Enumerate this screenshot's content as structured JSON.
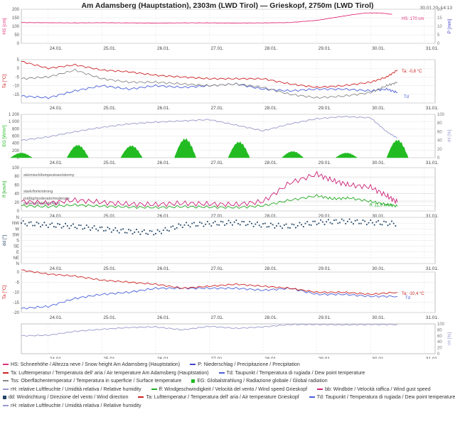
{
  "header": {
    "title": "Am Adamsberg (Hauptstation), 2303m (LWD Tirol) — Grieskopf, 2750m (LWD Tirol)",
    "timestamp": "30.01.20, 14:13"
  },
  "colors": {
    "hs": "#e0307a",
    "precip": "#4444cc",
    "ta": "#cc2222",
    "td": "#4a5fd8",
    "tss": "#888888",
    "eg": "#22bb22",
    "rh": "#9999cc",
    "ff": "#22aa22",
    "bb": "#cc2277",
    "dd": "#224466"
  },
  "chart_data": [
    {
      "type": "line",
      "id": "hs",
      "ylabel": "HS [cm]",
      "ylabel_right": "P [mm]",
      "ylim": [
        0,
        200
      ],
      "yticks": [
        "0",
        "50",
        "100",
        "150",
        "200"
      ],
      "yticks_right": [
        "0",
        "5",
        "10",
        "15",
        "20"
      ],
      "x": [
        23.5,
        24,
        24.5,
        25,
        25.5,
        26,
        26.5,
        27,
        27.5,
        28,
        28.5,
        29,
        29.3,
        29.6,
        29.9,
        30.2,
        30.4
      ],
      "xlim": [
        23.5,
        31.2
      ],
      "xticks": [
        "24.01.",
        "25.01.",
        "26.01.",
        "27.01.",
        "28.01.",
        "29.01.",
        "30.01.",
        "31.01."
      ],
      "series": [
        {
          "key": "hs",
          "values": [
            122,
            121,
            120,
            121,
            120,
            119,
            120,
            120,
            119,
            120,
            122,
            135,
            150,
            165,
            178,
            178,
            170
          ]
        }
      ],
      "annotation": "HS: 170 cm"
    },
    {
      "type": "line",
      "id": "temp1",
      "ylabel": "Ta [°C]",
      "ylim": [
        -20,
        5
      ],
      "yticks": [
        "-15",
        "-10",
        "-5",
        "0",
        "5"
      ],
      "x": [
        23.5,
        24,
        24.5,
        25,
        25.5,
        26,
        26.5,
        27,
        27.5,
        28,
        28.5,
        29,
        29.5,
        30,
        30.3,
        30.5
      ],
      "xlim": [
        23.5,
        31.2
      ],
      "xticks": [
        "24.01.",
        "25.01.",
        "26.01.",
        "27.01.",
        "28.01.",
        "29.01.",
        "30.01.",
        "31.01."
      ],
      "series": [
        {
          "key": "ta",
          "values": [
            4,
            0,
            2,
            -1,
            -2,
            -4,
            -5,
            -6,
            -6,
            -6,
            -9,
            -11,
            -10,
            -8,
            -5,
            -1
          ]
        },
        {
          "key": "tss",
          "values": [
            -6,
            -5,
            -1,
            -6,
            -8,
            -8,
            -9,
            -10,
            -9,
            -11,
            -15,
            -17,
            -16,
            -14,
            -10,
            -8
          ]
        },
        {
          "key": "td",
          "values": [
            -16,
            -17,
            -13,
            -10,
            -12,
            -10,
            -11,
            -10,
            -9,
            -12,
            -13,
            -12,
            -12,
            -13,
            -12,
            -14
          ]
        }
      ],
      "annotations": [
        "Ta: -0,8 °C",
        "Td"
      ]
    },
    {
      "type": "area",
      "id": "rad",
      "ylabel": "EG [W/m²]",
      "ylabel_right": "rH [%]",
      "ylim": [
        0,
        1200
      ],
      "yticks": [
        "0",
        "200",
        "400",
        "600",
        "800",
        "1 000",
        "1 200"
      ],
      "yticks_right": [
        "0",
        "20",
        "40",
        "60",
        "80",
        "100"
      ],
      "x": [
        23.5,
        24,
        24.5,
        25,
        25.5,
        26,
        26.5,
        27,
        27.5,
        28,
        28.5,
        29,
        29.5,
        30,
        30.3,
        30.5
      ],
      "xlim": [
        23.5,
        31.2
      ],
      "xticks": [
        "24.01.",
        "25.01.",
        "26.01.",
        "27.01.",
        "28.01.",
        "29.01.",
        "30.01.",
        "31.01."
      ],
      "rh_values": [
        40,
        48,
        60,
        70,
        78,
        82,
        85,
        88,
        75,
        62,
        78,
        90,
        95,
        92,
        60,
        45
      ],
      "rad_days": [
        23.5,
        24.55,
        25.55,
        26.55,
        27.55,
        28.55,
        29.55,
        30.5
      ],
      "rad_peaks": [
        150,
        400,
        380,
        600,
        500,
        200,
        150,
        560
      ]
    },
    {
      "type": "line",
      "id": "wind",
      "ylabel": "ff [km/h]",
      "ylim": [
        0,
        100
      ],
      "yticks": [
        "0",
        "20",
        "40",
        "60",
        "80",
        "100"
      ],
      "bands": [
        "stürmisch/tempestoso/stormy",
        "stark/forte/strong",
        "mäßig/moderato/moderate",
        "schwach/debole/light"
      ],
      "x": [
        23.5,
        24,
        24.5,
        25,
        25.5,
        26,
        26.5,
        27,
        27.5,
        28,
        28.5,
        29,
        29.3,
        29.6,
        30,
        30.3,
        30.5
      ],
      "xlim": [
        23.5,
        31.2
      ],
      "xticks": [
        "24.01.",
        "25.01.",
        "26.01.",
        "27.01.",
        "28.01.",
        "29.01.",
        "30.01.",
        "31.01."
      ],
      "series": [
        {
          "key": "ff",
          "values": [
            12,
            10,
            14,
            11,
            9,
            8,
            10,
            9,
            8,
            12,
            25,
            35,
            28,
            30,
            22,
            15,
            11
          ]
        },
        {
          "key": "bb",
          "values": [
            22,
            18,
            25,
            20,
            16,
            15,
            18,
            16,
            15,
            22,
            65,
            85,
            70,
            60,
            55,
            35,
            20
          ]
        }
      ],
      "annotation": "ff: 11,6 km/h"
    },
    {
      "type": "scatter",
      "id": "dir",
      "ylabel": "dd [°]",
      "yticks": [
        "N",
        "NW",
        "W",
        "SW",
        "S",
        "SE",
        "E",
        "NE",
        "N"
      ],
      "x": [
        23.5,
        24,
        24.5,
        25,
        25.5,
        26,
        26.5,
        27,
        27.5,
        28,
        28.5,
        29,
        29.5,
        30,
        30.5
      ],
      "xlim": [
        23.5,
        31.2
      ],
      "xticks": [
        "24.01.",
        "25.01.",
        "26.01.",
        "27.01.",
        "28.01.",
        "29.01.",
        "30.01.",
        "31.01."
      ],
      "values": [
        315,
        300,
        290,
        270,
        250,
        240,
        300,
        310,
        320,
        300,
        290,
        320,
        330,
        320,
        310
      ]
    },
    {
      "type": "line",
      "id": "temp2",
      "ylabel": "Ta [°C]",
      "ylim": [
        -20,
        0
      ],
      "yticks": [
        "-20",
        "-15",
        "-10",
        "-5",
        "0"
      ],
      "x": [
        23.5,
        24,
        24.5,
        25,
        25.5,
        26,
        26.5,
        27,
        27.5,
        28,
        28.5,
        29,
        29.5,
        30,
        30.5
      ],
      "xlim": [
        23.5,
        31.2
      ],
      "xticks": [
        "24.01.",
        "25.01.",
        "26.01.",
        "27.01.",
        "28.01.",
        "29.01.",
        "30.01.",
        "31.01."
      ],
      "series": [
        {
          "key": "ta",
          "values": [
            1,
            -1,
            -2,
            -4,
            -5,
            -6,
            -8,
            -7,
            -6,
            -7,
            -8,
            -10,
            -10,
            -11,
            -10
          ]
        },
        {
          "key": "td",
          "values": [
            -18,
            -17,
            -13,
            -11,
            -10,
            -8,
            -8,
            -8,
            -8,
            -9,
            -8,
            -11,
            -11,
            -12,
            -12
          ]
        }
      ],
      "annotations": [
        "Ta: -10,4 °C",
        "Td"
      ]
    },
    {
      "type": "line",
      "id": "rh2",
      "ylabel_right": "rH [%]",
      "ylim": [
        0,
        100
      ],
      "yticks_right": [
        "0",
        "20",
        "40",
        "60",
        "80",
        "100"
      ],
      "x": [
        23.5,
        24,
        24.5,
        25,
        25.5,
        26,
        26.5,
        27,
        27.5,
        28,
        28.5,
        29,
        29.5,
        30,
        30.5
      ],
      "xlim": [
        23.5,
        31.2
      ],
      "xticks": [
        "24.01.",
        "25.01.",
        "26.01.",
        "27.01.",
        "28.01.",
        "29.01.",
        "30.01.",
        "31.01."
      ],
      "series": [
        {
          "key": "rh",
          "values": [
            60,
            62,
            75,
            82,
            88,
            90,
            80,
            92,
            85,
            90,
            98,
            98,
            97,
            98,
            98
          ]
        }
      ]
    }
  ],
  "legend": [
    [
      {
        "key": "hs",
        "label": "HS: Schneehöhe / Altezza neve / Snow height  Am Adamsberg (Hauptstation)"
      },
      {
        "key": "precip",
        "label": "P: Niederschlag / Precipitazione / Precipitation"
      }
    ],
    [
      {
        "key": "ta",
        "label": "Ta: Lufttemperatur / Temperatura dell' aria / Air temperature  Am Adamsberg (Hauptstation)"
      },
      {
        "key": "td",
        "label": "Td: Taupunkt / Temperatura di rugiada / Dew point temperature"
      }
    ],
    [
      {
        "key": "tss",
        "label": "Tss: Oberflächentemperatur / Temperatura in superficie / Surface temperature"
      },
      {
        "key": "eg",
        "square": true,
        "label": "EG: Globalstrahlung / Radiazione globale / Global radiation"
      }
    ],
    [
      {
        "key": "rh",
        "label": "rH: relative Luftfeuchte / Umidità relativa / Relative humidity"
      },
      {
        "key": "ff",
        "label": "ff: Windgeschwindigkeit / Velocità del vento / Wind speed  Grieskopf"
      },
      {
        "key": "bb",
        "label": "bb: Windböe / Velocità raffica / Wind gust speed"
      }
    ],
    [
      {
        "key": "dd",
        "square": true,
        "label": "dd: Windrichtung / Direzione del vento / Wind direction"
      },
      {
        "key": "ta",
        "label": "Ta: Lufttemperatur / Temperatura dell' aria / Air temperature  Grieskopf"
      },
      {
        "key": "td",
        "label": "Td: Taupunkt / Temperatura di rugiada / Dew point temperature"
      }
    ],
    [
      {
        "key": "rh",
        "label": "rH: relative Luftfeuchte / Umidità relativa / Relative humidity"
      }
    ]
  ]
}
